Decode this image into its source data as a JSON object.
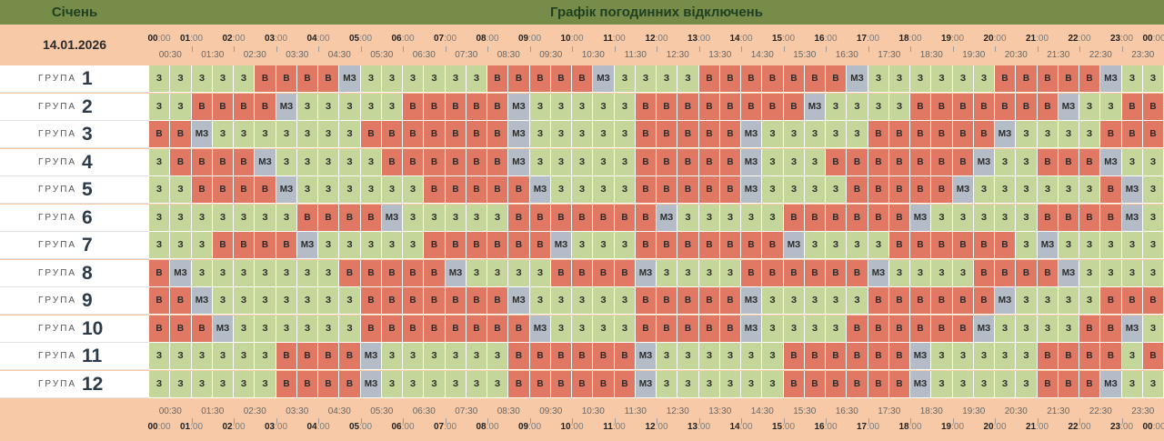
{
  "header": {
    "month": "Січень",
    "title": "Графік погодинних відключень",
    "date": "14.01.2026"
  },
  "axis": {
    "hours": [
      "00",
      "01",
      "02",
      "03",
      "04",
      "05",
      "06",
      "07",
      "08",
      "09",
      "10",
      "11",
      "12",
      "13",
      "14",
      "15",
      "16",
      "17",
      "18",
      "19",
      "20",
      "21",
      "22",
      "23",
      "00"
    ],
    "minutes": "00",
    "halves": [
      "00:30",
      "01:30",
      "02:30",
      "03:30",
      "04:30",
      "05:30",
      "06:30",
      "07:30",
      "08:30",
      "09:30",
      "10:30",
      "11:30",
      "12:30",
      "13:30",
      "14:30",
      "15:30",
      "16:30",
      "17:30",
      "18:30",
      "19:30",
      "20:30",
      "21:30",
      "22:30",
      "23:30"
    ]
  },
  "legend_codes": {
    "З": "on",
    "В": "off",
    "МЗ": "maybe"
  },
  "colors": {
    "on": "#c5d69a",
    "off": "#e07864",
    "maybe": "#b3bcc7",
    "header": "#778c48",
    "background": "#f7c9a7"
  },
  "group_word": "ГРУПА",
  "groups": [
    {
      "number": "1",
      "slots": [
        "З",
        "З",
        "З",
        "З",
        "З",
        "В",
        "В",
        "В",
        "В",
        "МЗ",
        "З",
        "З",
        "З",
        "З",
        "З",
        "З",
        "В",
        "В",
        "В",
        "В",
        "В",
        "МЗ",
        "З",
        "З",
        "З",
        "З",
        "В",
        "В",
        "В",
        "В",
        "В",
        "В",
        "В",
        "МЗ",
        "З",
        "З",
        "З",
        "З",
        "З",
        "З",
        "В",
        "В",
        "В",
        "В",
        "В",
        "МЗ",
        "З",
        "З"
      ]
    },
    {
      "number": "2",
      "slots": [
        "З",
        "З",
        "В",
        "В",
        "В",
        "В",
        "МЗ",
        "З",
        "З",
        "З",
        "З",
        "З",
        "В",
        "В",
        "В",
        "В",
        "В",
        "МЗ",
        "З",
        "З",
        "З",
        "З",
        "З",
        "В",
        "В",
        "В",
        "В",
        "В",
        "В",
        "В",
        "В",
        "МЗ",
        "З",
        "З",
        "З",
        "З",
        "В",
        "В",
        "В",
        "В",
        "В",
        "В",
        "В",
        "МЗ",
        "З",
        "З",
        "В",
        "В"
      ]
    },
    {
      "number": "3",
      "slots": [
        "В",
        "В",
        "МЗ",
        "З",
        "З",
        "З",
        "З",
        "З",
        "З",
        "З",
        "В",
        "В",
        "В",
        "В",
        "В",
        "В",
        "В",
        "МЗ",
        "З",
        "З",
        "З",
        "З",
        "З",
        "В",
        "В",
        "В",
        "В",
        "В",
        "МЗ",
        "З",
        "З",
        "З",
        "З",
        "З",
        "В",
        "В",
        "В",
        "В",
        "В",
        "В",
        "МЗ",
        "З",
        "З",
        "З",
        "З",
        "В",
        "В",
        "В"
      ]
    },
    {
      "number": "4",
      "slots": [
        "З",
        "В",
        "В",
        "В",
        "В",
        "МЗ",
        "З",
        "З",
        "З",
        "З",
        "З",
        "В",
        "В",
        "В",
        "В",
        "В",
        "В",
        "МЗ",
        "З",
        "З",
        "З",
        "З",
        "З",
        "В",
        "В",
        "В",
        "В",
        "В",
        "МЗ",
        "З",
        "З",
        "З",
        "В",
        "В",
        "В",
        "В",
        "В",
        "В",
        "В",
        "МЗ",
        "З",
        "З",
        "В",
        "В",
        "В",
        "МЗ",
        "З",
        "З"
      ]
    },
    {
      "number": "5",
      "slots": [
        "З",
        "З",
        "В",
        "В",
        "В",
        "В",
        "МЗ",
        "З",
        "З",
        "З",
        "З",
        "З",
        "З",
        "В",
        "В",
        "В",
        "В",
        "В",
        "МЗ",
        "З",
        "З",
        "З",
        "З",
        "В",
        "В",
        "В",
        "В",
        "В",
        "МЗ",
        "З",
        "З",
        "З",
        "З",
        "В",
        "В",
        "В",
        "В",
        "В",
        "МЗ",
        "З",
        "З",
        "З",
        "З",
        "З",
        "З",
        "В",
        "МЗ",
        "З"
      ]
    },
    {
      "number": "6",
      "slots": [
        "З",
        "З",
        "З",
        "З",
        "З",
        "З",
        "З",
        "В",
        "В",
        "В",
        "В",
        "МЗ",
        "З",
        "З",
        "З",
        "З",
        "З",
        "В",
        "В",
        "В",
        "В",
        "В",
        "В",
        "В",
        "МЗ",
        "З",
        "З",
        "З",
        "З",
        "З",
        "В",
        "В",
        "В",
        "В",
        "В",
        "В",
        "МЗ",
        "З",
        "З",
        "З",
        "З",
        "З",
        "В",
        "В",
        "В",
        "В",
        "МЗ",
        "З"
      ]
    },
    {
      "number": "7",
      "slots": [
        "З",
        "З",
        "З",
        "В",
        "В",
        "В",
        "В",
        "МЗ",
        "З",
        "З",
        "З",
        "З",
        "З",
        "В",
        "В",
        "В",
        "В",
        "В",
        "В",
        "МЗ",
        "З",
        "З",
        "З",
        "В",
        "В",
        "В",
        "В",
        "В",
        "В",
        "В",
        "МЗ",
        "З",
        "З",
        "З",
        "З",
        "В",
        "В",
        "В",
        "В",
        "В",
        "В",
        "З",
        "МЗ",
        "З",
        "З",
        "З",
        "З",
        "З"
      ]
    },
    {
      "number": "8",
      "slots": [
        "В",
        "МЗ",
        "З",
        "З",
        "З",
        "З",
        "З",
        "З",
        "З",
        "В",
        "В",
        "В",
        "В",
        "В",
        "МЗ",
        "З",
        "З",
        "З",
        "З",
        "В",
        "В",
        "В",
        "В",
        "МЗ",
        "З",
        "З",
        "З",
        "З",
        "В",
        "В",
        "В",
        "В",
        "В",
        "В",
        "МЗ",
        "З",
        "З",
        "З",
        "З",
        "В",
        "В",
        "В",
        "В",
        "МЗ",
        "З",
        "З",
        "З",
        "З"
      ]
    },
    {
      "number": "9",
      "slots": [
        "В",
        "В",
        "МЗ",
        "З",
        "З",
        "З",
        "З",
        "З",
        "З",
        "З",
        "В",
        "В",
        "В",
        "В",
        "В",
        "В",
        "В",
        "МЗ",
        "З",
        "З",
        "З",
        "З",
        "З",
        "В",
        "В",
        "В",
        "В",
        "В",
        "МЗ",
        "З",
        "З",
        "З",
        "З",
        "З",
        "В",
        "В",
        "В",
        "В",
        "В",
        "В",
        "МЗ",
        "З",
        "З",
        "З",
        "З",
        "В",
        "В",
        "В"
      ]
    },
    {
      "number": "10",
      "slots": [
        "В",
        "В",
        "В",
        "МЗ",
        "З",
        "З",
        "З",
        "З",
        "З",
        "З",
        "В",
        "В",
        "В",
        "В",
        "В",
        "В",
        "В",
        "В",
        "МЗ",
        "З",
        "З",
        "З",
        "З",
        "В",
        "В",
        "В",
        "В",
        "В",
        "МЗ",
        "З",
        "З",
        "З",
        "З",
        "В",
        "В",
        "В",
        "В",
        "В",
        "В",
        "МЗ",
        "З",
        "З",
        "З",
        "З",
        "В",
        "В",
        "МЗ",
        "З"
      ]
    },
    {
      "number": "11",
      "slots": [
        "З",
        "З",
        "З",
        "З",
        "З",
        "З",
        "В",
        "В",
        "В",
        "В",
        "МЗ",
        "З",
        "З",
        "З",
        "З",
        "З",
        "З",
        "В",
        "В",
        "В",
        "В",
        "В",
        "В",
        "МЗ",
        "З",
        "З",
        "З",
        "З",
        "З",
        "З",
        "В",
        "В",
        "В",
        "В",
        "В",
        "В",
        "МЗ",
        "З",
        "З",
        "З",
        "З",
        "З",
        "В",
        "В",
        "В",
        "В",
        "З",
        "В"
      ]
    },
    {
      "number": "12",
      "slots": [
        "З",
        "З",
        "З",
        "З",
        "З",
        "З",
        "В",
        "В",
        "В",
        "В",
        "МЗ",
        "З",
        "З",
        "З",
        "З",
        "З",
        "З",
        "В",
        "В",
        "В",
        "В",
        "В",
        "В",
        "МЗ",
        "З",
        "З",
        "З",
        "З",
        "З",
        "З",
        "В",
        "В",
        "В",
        "В",
        "В",
        "В",
        "МЗ",
        "З",
        "З",
        "З",
        "З",
        "З",
        "В",
        "В",
        "В",
        "МЗ",
        "З",
        "З"
      ]
    }
  ]
}
